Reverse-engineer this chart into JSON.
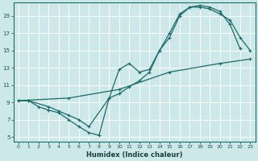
{
  "title": "",
  "xlabel": "Humidex (Indice chaleur)",
  "ylabel": "",
  "background_color": "#cce8e8",
  "grid_color": "#b8d8d8",
  "line_color": "#1a6b6b",
  "xlim": [
    -0.5,
    23.5
  ],
  "ylim": [
    4.5,
    20.5
  ],
  "xticks": [
    0,
    1,
    2,
    3,
    4,
    5,
    6,
    7,
    8,
    9,
    10,
    11,
    12,
    13,
    14,
    15,
    16,
    17,
    18,
    19,
    20,
    21,
    22,
    23
  ],
  "yticks": [
    5,
    7,
    9,
    11,
    13,
    15,
    17,
    19
  ],
  "series": [
    {
      "x": [
        0,
        1,
        3,
        4,
        5,
        6,
        7,
        9,
        10,
        11,
        12,
        13,
        14,
        15,
        16,
        17,
        18,
        19,
        20,
        21,
        22,
        23
      ],
      "y": [
        9.2,
        9.2,
        8.5,
        8.0,
        7.5,
        7.0,
        6.2,
        9.5,
        12.8,
        13.5,
        12.5,
        12.8,
        15.0,
        16.5,
        19.0,
        20.0,
        20.0,
        19.8,
        19.2,
        18.5,
        16.5,
        15.0
      ]
    },
    {
      "x": [
        0,
        1,
        2,
        3,
        4,
        5,
        6,
        7,
        8,
        9,
        10,
        11,
        12,
        13,
        14,
        15,
        16,
        17,
        18,
        19,
        20,
        21,
        22
      ],
      "y": [
        9.2,
        9.2,
        8.5,
        8.1,
        7.8,
        7.0,
        6.2,
        5.5,
        5.2,
        9.5,
        10.0,
        10.8,
        11.5,
        12.5,
        15.0,
        17.0,
        19.2,
        20.0,
        20.2,
        20.0,
        19.5,
        18.0,
        15.2
      ]
    },
    {
      "x": [
        0,
        5,
        10,
        15,
        20,
        23
      ],
      "y": [
        9.2,
        9.5,
        10.5,
        12.5,
        13.5,
        14.0
      ]
    }
  ]
}
